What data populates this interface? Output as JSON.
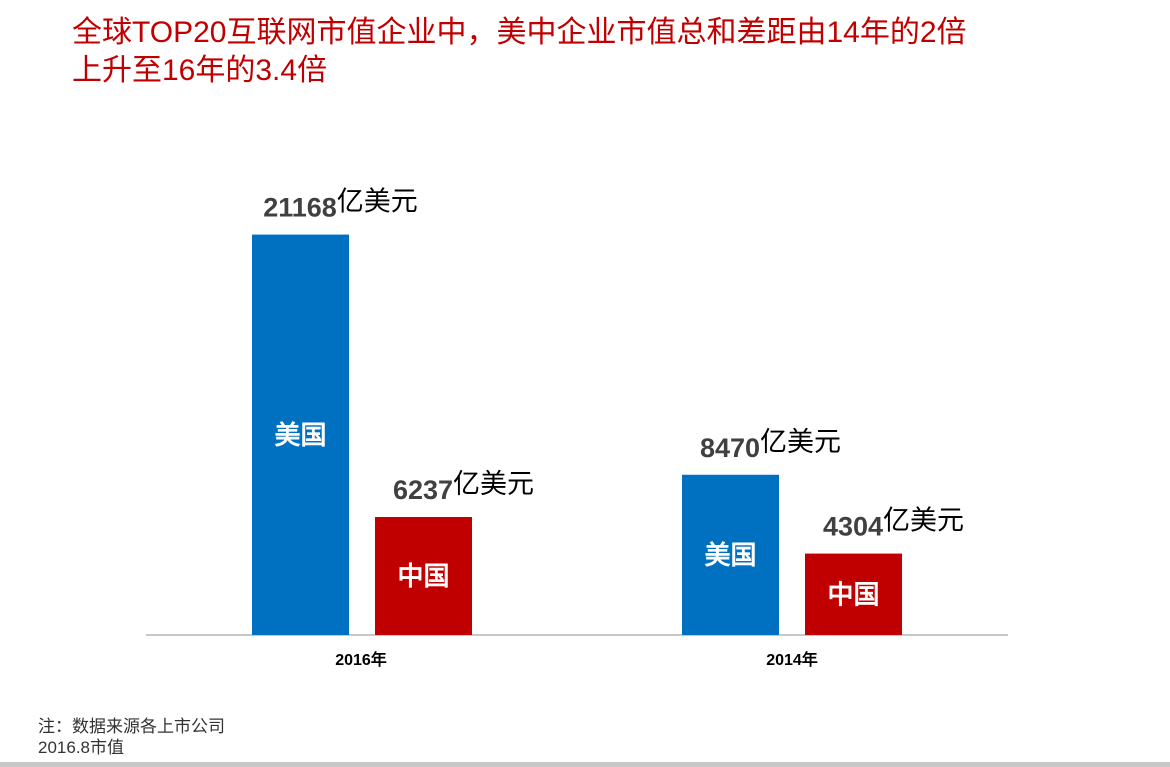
{
  "title_line1": "全球TOP20互联网市值企业中，美中企业市值总和差距由14年的2倍",
  "title_line2": "上升至16年的3.4倍",
  "note_line1": "注：数据来源各上市公司",
  "note_line2": "2016.8市值",
  "colors": {
    "usa": "#0070c0",
    "china": "#c00000",
    "title": "#c00000",
    "axis": "#c8c8c8"
  },
  "chart_data": {
    "type": "bar",
    "title": "",
    "xlabel": "",
    "ylabel": "",
    "grid": false,
    "ylim": [
      0,
      24000
    ],
    "unit": "亿美元",
    "categories": [
      "2016年",
      "2014年"
    ],
    "series": [
      {
        "name": "美国",
        "values": [
          21168,
          8470
        ]
      },
      {
        "name": "中国",
        "values": [
          6237,
          4304
        ]
      }
    ]
  }
}
